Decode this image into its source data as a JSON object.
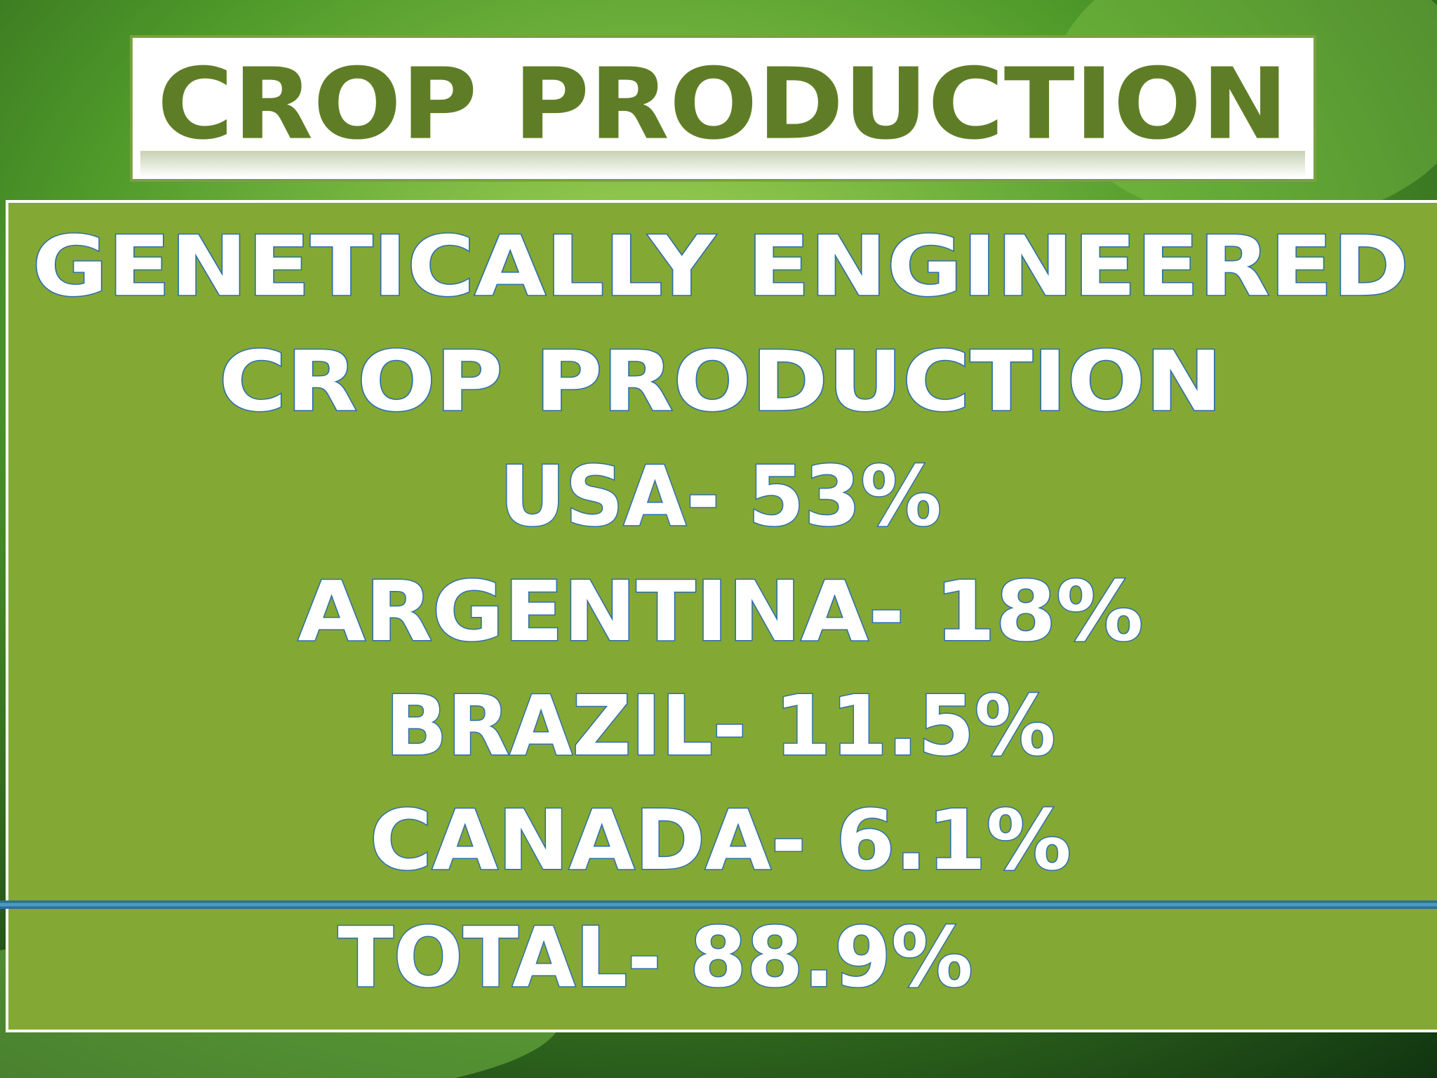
{
  "title": "CROP PRODUCTION",
  "content": {
    "heading": [
      "GENETICALLY ENGINEERED",
      "CROP PRODUCTION"
    ],
    "items": [
      "USA- 53%",
      "ARGENTINA- 18%",
      "BRAZIL- 11.5%",
      "CANADA- 6.1%"
    ],
    "total": "TOTAL- 88.9%"
  }
}
